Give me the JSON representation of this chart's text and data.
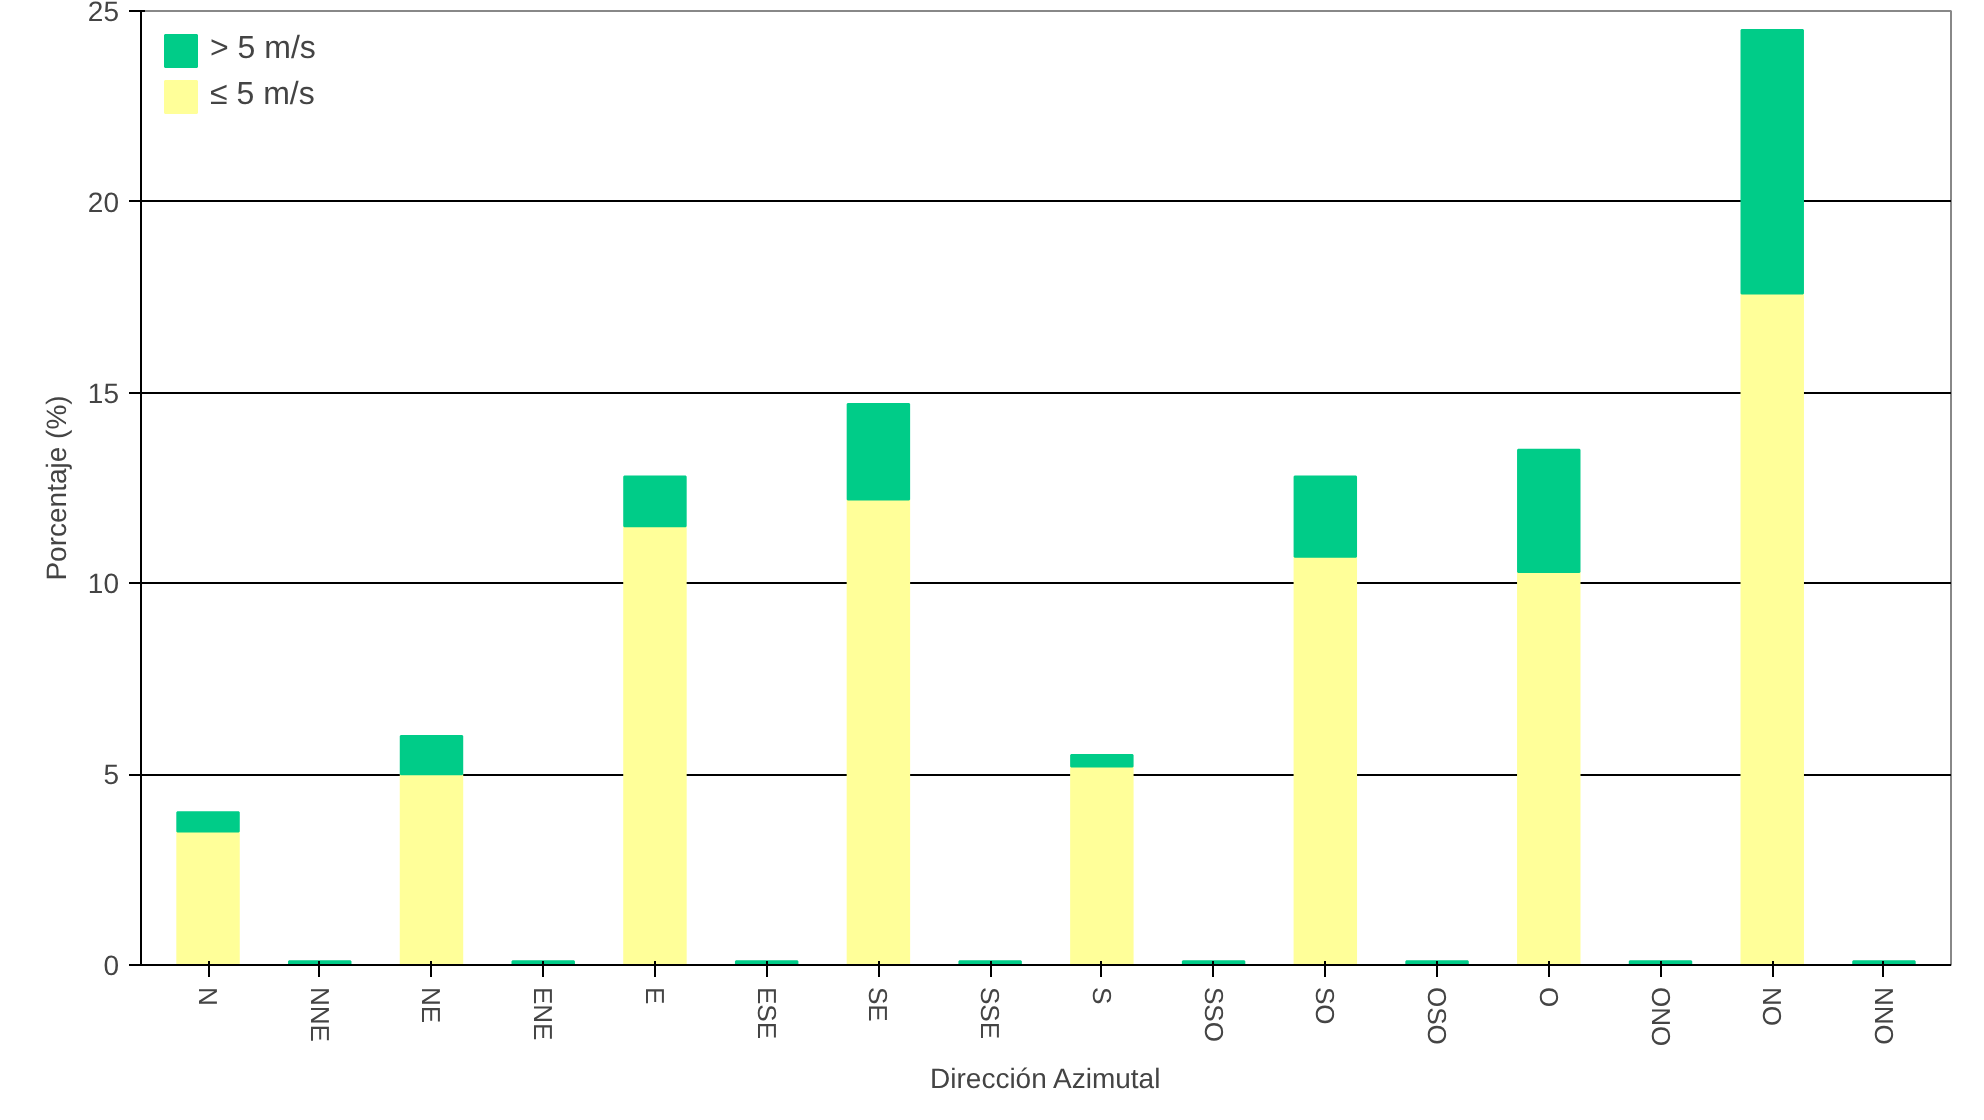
{
  "chart_data": {
    "type": "bar",
    "stacked": true,
    "xlabel": "Dirección Azimutal",
    "ylabel": "Porcentaje (%)",
    "categories": [
      "N",
      "NNE",
      "NE",
      "ENE",
      "E",
      "ESE",
      "SE",
      "SSE",
      "S",
      "SSO",
      "SO",
      "OSO",
      "O",
      "ONO",
      "NO",
      "NNO"
    ],
    "series": [
      {
        "name": "≤ 5 m/s",
        "color": "#ffff99",
        "values": [
          3.5,
          0,
          5.0,
          0,
          11.5,
          0,
          12.2,
          0,
          5.2,
          0,
          10.7,
          0,
          10.3,
          0,
          17.6,
          0
        ]
      },
      {
        "name": "> 5 m/s",
        "color": "#00cc88",
        "values": [
          0.5,
          0.1,
          1.0,
          0.1,
          1.3,
          0.1,
          2.5,
          0.1,
          0.3,
          0.1,
          2.1,
          0.1,
          3.2,
          0.1,
          6.9,
          0.1
        ]
      }
    ],
    "ylim": [
      0,
      25
    ],
    "yticks": [
      0,
      5,
      10,
      15,
      20,
      25
    ],
    "grid": "y",
    "legend": "top left"
  }
}
